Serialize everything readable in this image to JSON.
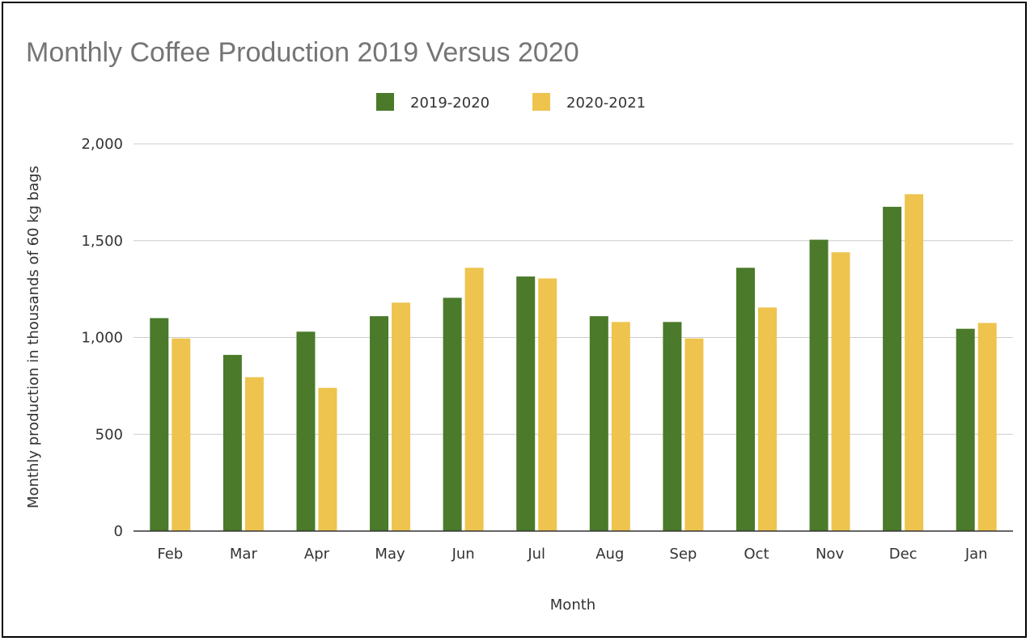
{
  "chart_data": {
    "type": "bar",
    "title": "Monthly Coffee Production 2019 Versus 2020",
    "xlabel": "Month",
    "ylabel": "Monthly production in thousands of 60 kg bags",
    "categories": [
      "Feb",
      "Mar",
      "Apr",
      "May",
      "Jun",
      "Jul",
      "Aug",
      "Sep",
      "Oct",
      "Nov",
      "Dec",
      "Jan"
    ],
    "series": [
      {
        "name": "2019-2020",
        "color": "#4a7a2a",
        "values": [
          1100,
          910,
          1030,
          1110,
          1205,
          1315,
          1110,
          1080,
          1360,
          1505,
          1675,
          1045
        ]
      },
      {
        "name": "2020-2021",
        "color": "#eec44f",
        "values": [
          995,
          795,
          740,
          1180,
          1360,
          1305,
          1080,
          995,
          1155,
          1440,
          1740,
          1075
        ]
      }
    ],
    "ylim": [
      0,
      2000
    ],
    "yticks": [
      0,
      500,
      1000,
      1500,
      2000
    ],
    "ytick_labels": [
      "0",
      "500",
      "1,000",
      "1,500",
      "2,000"
    ],
    "grid": true,
    "legend_position": "top-center"
  }
}
